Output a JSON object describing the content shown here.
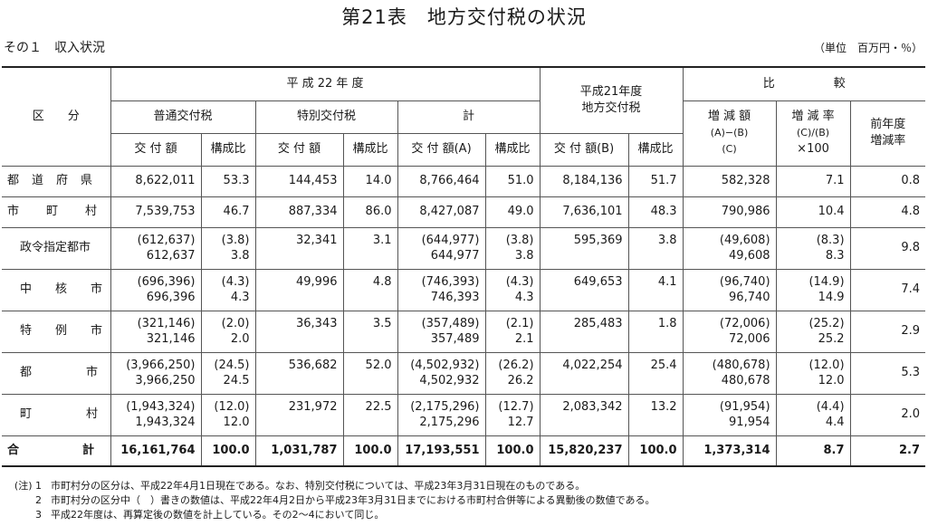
{
  "title": "第21表　地方交付税の状況",
  "subtitle": "その１　収入状況",
  "unit": "（単位　百万円・％）",
  "header": {
    "kubun": "区　　分",
    "h22": "平 成 22 年 度",
    "futsu": "普通交付税",
    "tokubetsu": "特別交付税",
    "kei": "計",
    "h21_line1": "平成21年度",
    "h21_line2": "地方交付税",
    "hikaku": "比　　　　　較",
    "kofugaku": "交 付 額",
    "koseihi": "構成比",
    "kofugaku_a": "交 付 額(A)",
    "kofugaku_b": "交 付 額(B)",
    "zogen_l1": "増 減 額",
    "zogen_l2": "(A)−(B)",
    "zogen_l3": "(C)",
    "zogenritsu_l1": "増 減 率",
    "zogenritsu_l2": "(C)/(B)",
    "zogenritsu_l3": "×100",
    "zennen_l1": "前年度",
    "zennen_l2": "増減率"
  },
  "rows": {
    "todofuken": {
      "label": "都道府県",
      "c": [
        "8,622,011",
        "53.3",
        "144,453",
        "14.0",
        "8,766,464",
        "51.0",
        "8,184,136",
        "51.7",
        "582,328",
        "7.1",
        "0.8"
      ]
    },
    "shichoson": {
      "label": "市町村",
      "c": [
        "7,539,753",
        "46.7",
        "887,334",
        "86.0",
        "8,427,087",
        "49.0",
        "7,636,101",
        "48.3",
        "790,986",
        "10.4",
        "4.8"
      ]
    },
    "seirei": {
      "label": "政令指定都市",
      "a1": "(612,637)",
      "a2": "612,637",
      "b1": "(3.8)",
      "b2": "3.8",
      "c": "32,341",
      "d": "3.1",
      "e1": "(644,977)",
      "e2": "644,977",
      "f1": "(3.8)",
      "f2": "3.8",
      "g": "595,369",
      "h": "3.8",
      "i1": "(49,608)",
      "i2": "49,608",
      "j1": "(8.3)",
      "j2": "8.3",
      "k": "9.8"
    },
    "chukaku": {
      "label": "中核市",
      "a1": "(696,396)",
      "a2": "696,396",
      "b1": "(4.3)",
      "b2": "4.3",
      "c": "49,996",
      "d": "4.8",
      "e1": "(746,393)",
      "e2": "746,393",
      "f1": "(4.3)",
      "f2": "4.3",
      "g": "649,653",
      "h": "4.1",
      "i1": "(96,740)",
      "i2": "96,740",
      "j1": "(14.9)",
      "j2": "14.9",
      "k": "7.4"
    },
    "tokurei": {
      "label": "特例市",
      "a1": "(321,146)",
      "a2": "321,146",
      "b1": "(2.0)",
      "b2": "2.0",
      "c": "36,343",
      "d": "3.5",
      "e1": "(357,489)",
      "e2": "357,489",
      "f1": "(2.1)",
      "f2": "2.1",
      "g": "285,483",
      "h": "1.8",
      "i1": "(72,006)",
      "i2": "72,006",
      "j1": "(25.2)",
      "j2": "25.2",
      "k": "2.9"
    },
    "toshi": {
      "label": "都市",
      "a1": "(3,966,250)",
      "a2": "3,966,250",
      "b1": "(24.5)",
      "b2": "24.5",
      "c": "536,682",
      "d": "52.0",
      "e1": "(4,502,932)",
      "e2": "4,502,932",
      "f1": "(26.2)",
      "f2": "26.2",
      "g": "4,022,254",
      "h": "25.4",
      "i1": "(480,678)",
      "i2": "480,678",
      "j1": "(12.0)",
      "j2": "12.0",
      "k": "5.3"
    },
    "choson": {
      "label": "町村",
      "a1": "(1,943,324)",
      "a2": "1,943,324",
      "b1": "(12.0)",
      "b2": "12.0",
      "c": "231,972",
      "d": "22.5",
      "e1": "(2,175,296)",
      "e2": "2,175,296",
      "f1": "(12.7)",
      "f2": "12.7",
      "g": "2,083,342",
      "h": "13.2",
      "i1": "(91,954)",
      "i2": "91,954",
      "j1": "(4.4)",
      "j2": "4.4",
      "k": "2.0"
    },
    "total": {
      "label": "合計",
      "c": [
        "16,161,764",
        "100.0",
        "1,031,787",
        "100.0",
        "17,193,551",
        "100.0",
        "15,820,237",
        "100.0",
        "1,373,314",
        "8.7",
        "2.7"
      ]
    }
  },
  "notes": [
    {
      "k": "(注) 1",
      "t": "市町村分の区分は、平成22年4月1日現在である。なお、特別交付税については、平成23年3月31日現在のものである。"
    },
    {
      "k": "2",
      "t": "市町村分の区分中（　）書きの数値は、平成22年4月2日から平成23年3月31日までにおける市町村合併等による異動後の数値である。"
    },
    {
      "k": "3",
      "t": "平成22年度は、再算定後の数値を計上している。その2〜4において同じ。"
    }
  ]
}
